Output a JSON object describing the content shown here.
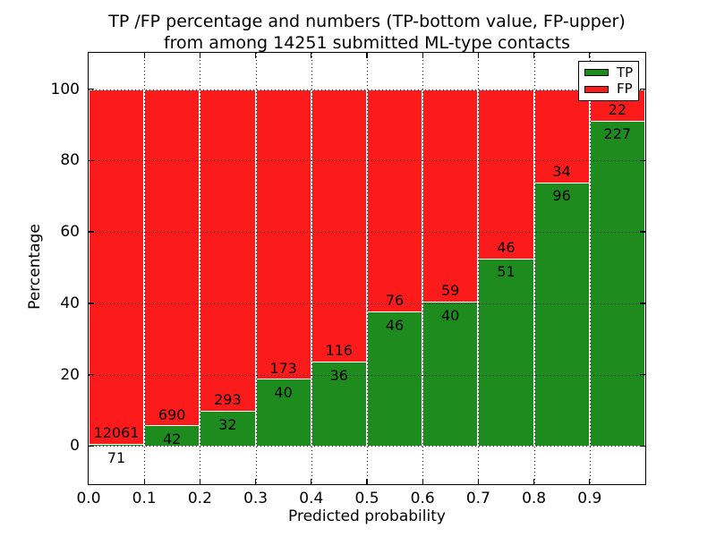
{
  "title": {
    "line1": "TP /FP percentage and numbers (TP-bottom value, FP-upper)",
    "line2": "from among 14251 submitted ML-type contacts"
  },
  "axes": {
    "x_label": "Predicted probability",
    "y_label": "Percentage",
    "x_tick_labels": [
      "0.0",
      "0.1",
      "0.2",
      "0.3",
      "0.4",
      "0.5",
      "0.6",
      "0.7",
      "0.8",
      "0.9"
    ],
    "y_tick_labels": [
      "0",
      "20",
      "40",
      "60",
      "80",
      "100"
    ],
    "y_tick_values": [
      0,
      20,
      40,
      60,
      80,
      100
    ]
  },
  "legend": {
    "items": [
      {
        "label": "TP",
        "color": "#1e8b1e"
      },
      {
        "label": "FP",
        "color": "#fb1b1b"
      }
    ]
  },
  "colors": {
    "tp": "#1e8b1e",
    "fp": "#fb1b1b",
    "grid": "#000000",
    "bar_edge": "#ffffff"
  },
  "chart_data": {
    "type": "bar",
    "variant": "stacked-percentage",
    "title": "TP /FP percentage and numbers (TP-bottom value, FP-upper) from among 14251 submitted ML-type contacts",
    "xlabel": "Predicted probability",
    "ylabel": "Percentage",
    "total_contacts": 14251,
    "bin_width": 0.1,
    "x_bins": [
      0.0,
      0.1,
      0.2,
      0.3,
      0.4,
      0.5,
      0.6,
      0.7,
      0.8,
      0.9
    ],
    "series": [
      {
        "name": "TP",
        "color": "#1e8b1e",
        "counts": [
          71,
          42,
          32,
          40,
          36,
          46,
          40,
          51,
          96,
          227
        ]
      },
      {
        "name": "FP",
        "color": "#fb1b1b",
        "counts": [
          12061,
          690,
          293,
          173,
          116,
          76,
          59,
          46,
          34,
          22
        ]
      }
    ],
    "tp_percent": [
      0.59,
      5.74,
      9.85,
      18.78,
      23.68,
      37.7,
      40.4,
      52.58,
      73.85,
      91.16
    ],
    "ylim": [
      0,
      100
    ],
    "grid": "dotted",
    "legend_position": "upper right"
  }
}
